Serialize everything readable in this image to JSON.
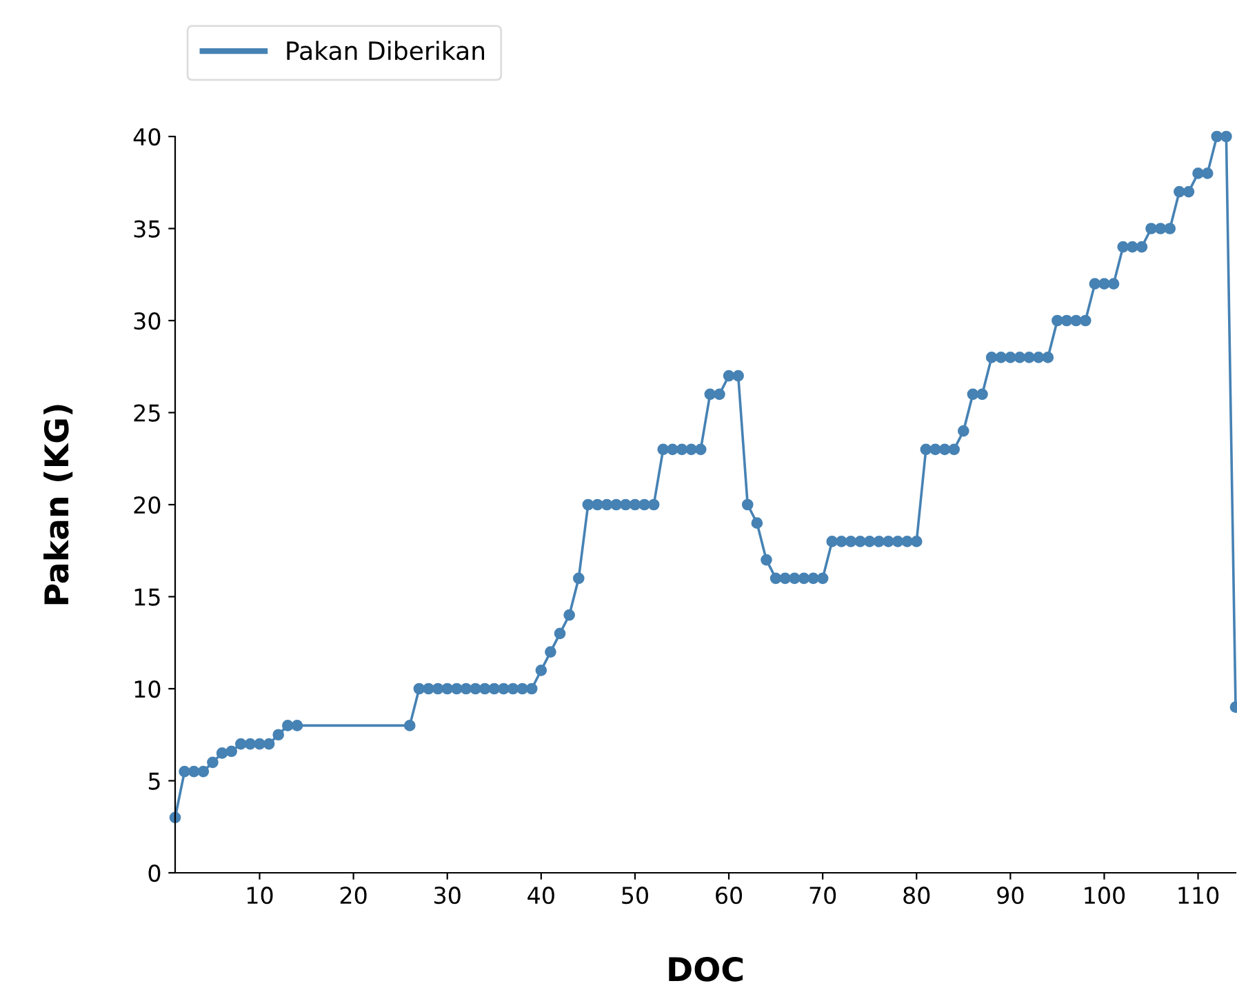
{
  "chart_data": {
    "type": "line",
    "xlabel": "DOC",
    "ylabel": "Pakan (KG)",
    "x": [
      1,
      2,
      3,
      4,
      5,
      6,
      7,
      8,
      9,
      10,
      11,
      12,
      13,
      14,
      26,
      27,
      28,
      29,
      30,
      31,
      32,
      33,
      34,
      35,
      36,
      37,
      38,
      39,
      40,
      41,
      42,
      43,
      44,
      45,
      46,
      47,
      48,
      49,
      50,
      51,
      52,
      53,
      54,
      55,
      56,
      57,
      58,
      59,
      60,
      61,
      62,
      63,
      64,
      65,
      66,
      67,
      68,
      69,
      70,
      71,
      72,
      73,
      74,
      75,
      76,
      77,
      78,
      79,
      80,
      81,
      82,
      83,
      84,
      85,
      86,
      87,
      88,
      89,
      90,
      91,
      92,
      93,
      94,
      95,
      96,
      97,
      98,
      99,
      100,
      101,
      102,
      103,
      104,
      105,
      106,
      107,
      108,
      109,
      110,
      111,
      112,
      113,
      114
    ],
    "series": [
      {
        "name": "Pakan Diberikan",
        "color": "#4682b4",
        "values": [
          3,
          5.5,
          5.5,
          5.5,
          6,
          6.5,
          6.6,
          7,
          7,
          7,
          7,
          7.5,
          8,
          8,
          8,
          10,
          10,
          10,
          10,
          10,
          10,
          10,
          10,
          10,
          10,
          10,
          10,
          10,
          11,
          12,
          13,
          14,
          16,
          20,
          20,
          20,
          20,
          20,
          20,
          20,
          20,
          23,
          23,
          23,
          23,
          23,
          26,
          26,
          27,
          27,
          20,
          19,
          17,
          16,
          16,
          16,
          16,
          16,
          16,
          18,
          18,
          18,
          18,
          18,
          18,
          18,
          18,
          18,
          18,
          23,
          23,
          23,
          23,
          24,
          26,
          26,
          28,
          28,
          28,
          28,
          28,
          28,
          28,
          30,
          30,
          30,
          30,
          32,
          32,
          32,
          34,
          34,
          34,
          35,
          35,
          35,
          37,
          37,
          38,
          38,
          40,
          40,
          9
        ]
      }
    ],
    "xlim": [
      1,
      114
    ],
    "xticks": [
      10,
      20,
      30,
      40,
      50,
      60,
      70,
      80,
      90,
      100,
      110
    ],
    "ylim": [
      0,
      40
    ],
    "yticks": [
      0,
      5,
      10,
      15,
      20,
      25,
      30,
      35,
      40
    ],
    "marker": "circle",
    "line_style": "solid",
    "grid": false,
    "legend": "top left"
  }
}
